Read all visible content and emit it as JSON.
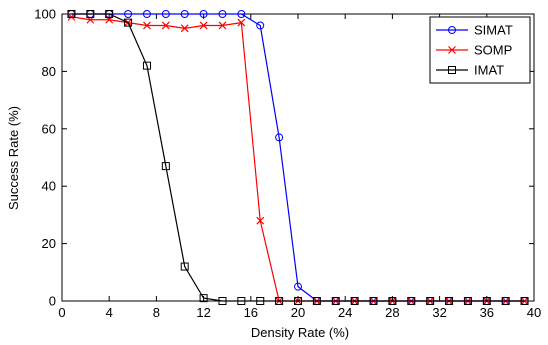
{
  "chart_data": {
    "type": "line",
    "xlabel": "Density Rate (%)",
    "ylabel": "Success Rate (%)",
    "xlim": [
      0,
      40
    ],
    "ylim": [
      0,
      100
    ],
    "xticks": [
      0,
      4,
      8,
      12,
      16,
      20,
      24,
      28,
      32,
      36,
      40
    ],
    "yticks": [
      0,
      20,
      40,
      60,
      80,
      100
    ],
    "grid": false,
    "legend_position": "top-right",
    "x": [
      0.8,
      2.4,
      4.0,
      5.6,
      7.2,
      8.8,
      10.4,
      12.0,
      13.6,
      15.2,
      16.8,
      18.4,
      20.0,
      21.6,
      23.2,
      24.8,
      26.4,
      28.0,
      29.6,
      31.2,
      32.8,
      34.4,
      36.0,
      37.6,
      39.2
    ],
    "series": [
      {
        "name": "SIMAT",
        "color": "#0000ff",
        "marker": "circle",
        "values": [
          100,
          100,
          100,
          100,
          100,
          100,
          100,
          100,
          100,
          100,
          96,
          57,
          5,
          0,
          0,
          0,
          0,
          0,
          0,
          0,
          0,
          0,
          0,
          0,
          0
        ]
      },
      {
        "name": "SOMP",
        "color": "#ff0000",
        "marker": "x",
        "values": [
          99,
          98,
          98,
          97,
          96,
          96,
          95,
          96,
          96,
          97,
          28,
          0,
          0,
          0,
          0,
          0,
          0,
          0,
          0,
          0,
          0,
          0,
          0,
          0,
          0
        ]
      },
      {
        "name": "IMAT",
        "color": "#000000",
        "marker": "square",
        "values": [
          100,
          100,
          100,
          97,
          82,
          47,
          12,
          1,
          0,
          0,
          0,
          0,
          0,
          0,
          0,
          0,
          0,
          0,
          0,
          0,
          0,
          0,
          0,
          0,
          0
        ]
      }
    ]
  }
}
